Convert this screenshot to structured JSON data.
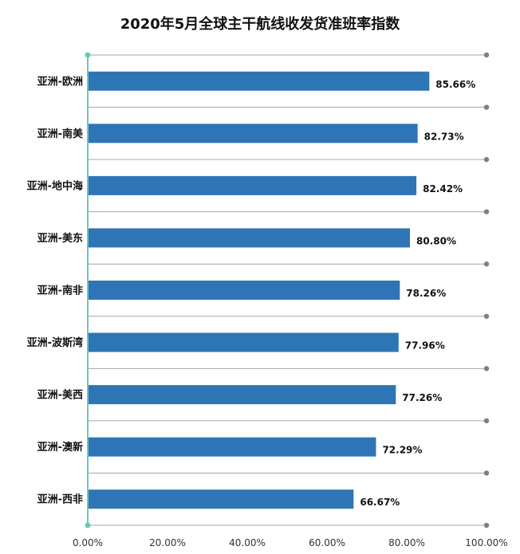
{
  "chart_data": {
    "type": "bar",
    "orientation": "horizontal",
    "title": "2020年5月全球主干航线收发货准班率指数",
    "categories": [
      "亚洲-欧洲",
      "亚洲-南美",
      "亚洲-地中海",
      "亚洲-美东",
      "亚洲-南非",
      "亚洲-波斯湾",
      "亚洲-美西",
      "亚洲-澳新",
      "亚洲-西非"
    ],
    "values": [
      85.66,
      82.73,
      82.42,
      80.8,
      78.26,
      77.96,
      77.26,
      72.29,
      66.67
    ],
    "value_labels": [
      "85.66%",
      "82.73%",
      "82.42%",
      "80.80%",
      "78.26%",
      "77.96%",
      "77.26%",
      "72.29%",
      "66.67%"
    ],
    "x_ticks": [
      "0.00%",
      "20.00%",
      "40.00%",
      "60.00%",
      "80.00%",
      "100.00%"
    ],
    "xlim": [
      0,
      100
    ],
    "xlabel": "",
    "ylabel": "",
    "grid": true,
    "legend": "none",
    "bar_color": "#2E75B6",
    "axis_color": "#6CC9B8",
    "grid_color": "#A6A6A6",
    "grid_dot_color": "#7F7F7F"
  }
}
